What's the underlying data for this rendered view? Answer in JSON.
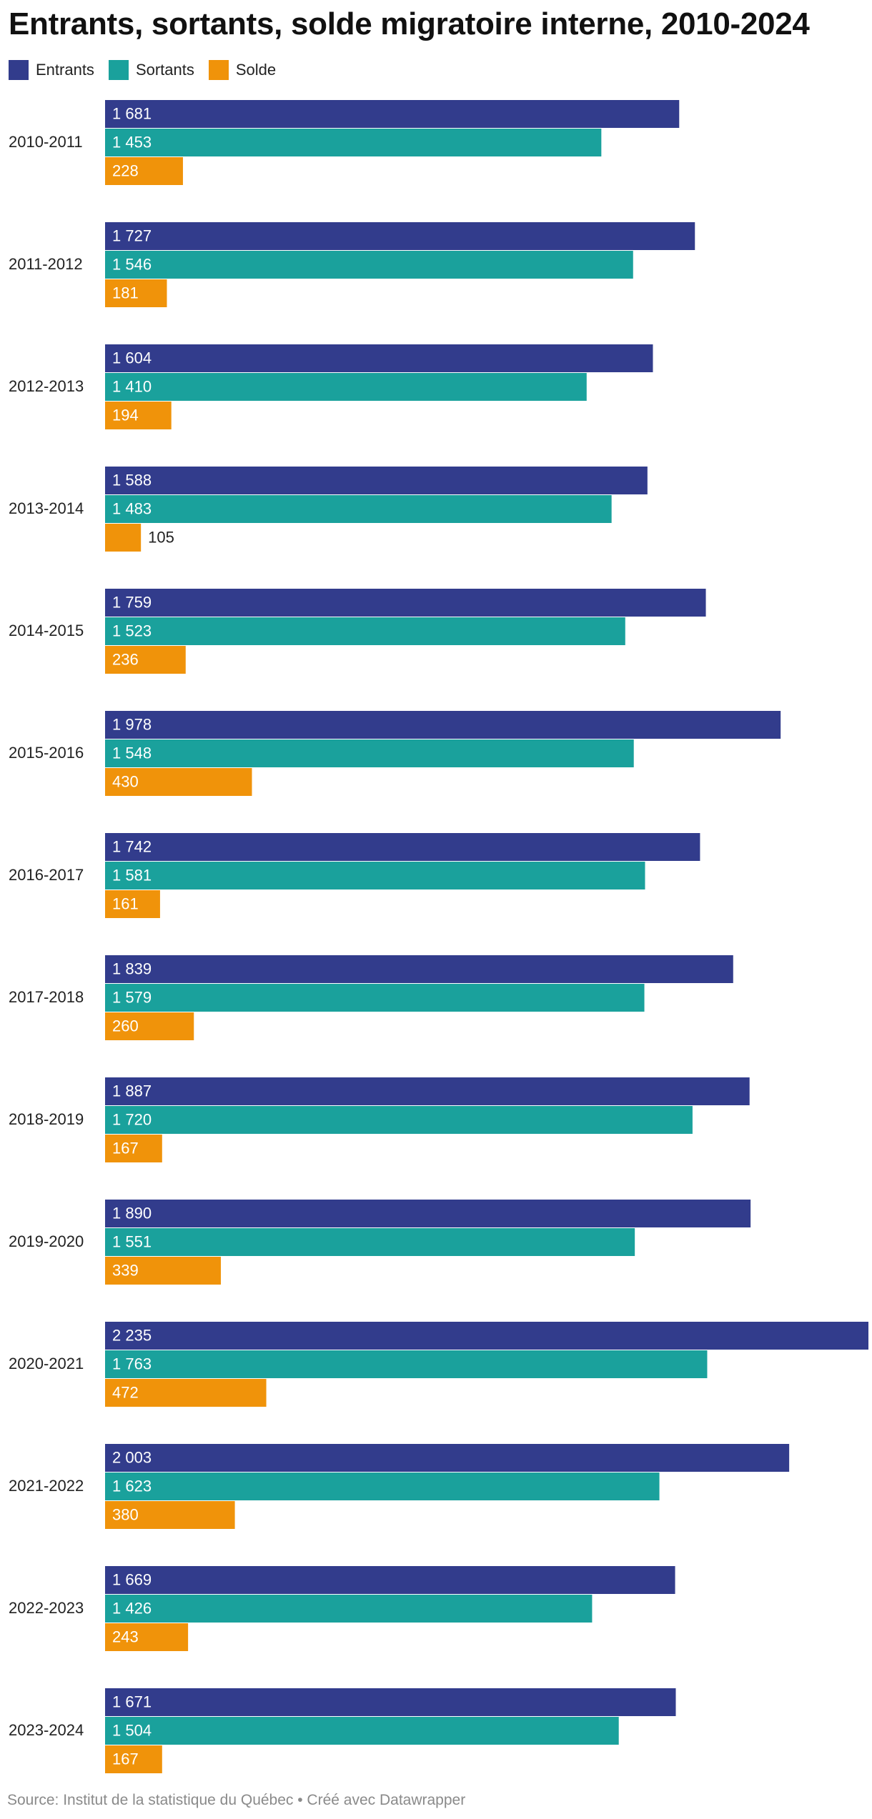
{
  "chart_data": {
    "type": "bar",
    "orientation": "horizontal",
    "title": "Entrants, sortants, solde migratoire interne, 2010-2024",
    "categories": [
      "2010-2011",
      "2011-2012",
      "2012-2013",
      "2013-2014",
      "2014-2015",
      "2015-2016",
      "2016-2017",
      "2017-2018",
      "2018-2019",
      "2019-2020",
      "2020-2021",
      "2021-2022",
      "2022-2023",
      "2023-2024"
    ],
    "series": [
      {
        "name": "Entrants",
        "color": "#323c8c",
        "values": [
          1681,
          1727,
          1604,
          1588,
          1759,
          1978,
          1742,
          1839,
          1887,
          1890,
          2235,
          2003,
          1669,
          1671
        ],
        "labels": [
          "1 681",
          "1 727",
          "1 604",
          "1 588",
          "1 759",
          "1 978",
          "1 742",
          "1 839",
          "1 887",
          "1 890",
          "2 235",
          "2 003",
          "1 669",
          "1 671"
        ]
      },
      {
        "name": "Sortants",
        "color": "#1aa19c",
        "values": [
          1453,
          1546,
          1410,
          1483,
          1523,
          1548,
          1581,
          1579,
          1720,
          1551,
          1763,
          1623,
          1426,
          1504
        ],
        "labels": [
          "1 453",
          "1 546",
          "1 410",
          "1 483",
          "1 523",
          "1 548",
          "1 581",
          "1 579",
          "1 720",
          "1 551",
          "1 763",
          "1 623",
          "1 426",
          "1 504"
        ]
      },
      {
        "name": "Solde",
        "color": "#f0930a",
        "values": [
          228,
          181,
          194,
          105,
          236,
          430,
          161,
          260,
          167,
          339,
          472,
          380,
          243,
          167
        ],
        "labels": [
          "228",
          "181",
          "194",
          "105",
          "236",
          "430",
          "161",
          "260",
          "167",
          "339",
          "472",
          "380",
          "243",
          "167"
        ]
      }
    ],
    "xlim": [
      0,
      2235
    ],
    "grid": false,
    "legend_position": "top-left",
    "value_labels": "inside-bar"
  },
  "source_text": "Source: Institut de la statistique du Québec • Créé avec Datawrapper"
}
